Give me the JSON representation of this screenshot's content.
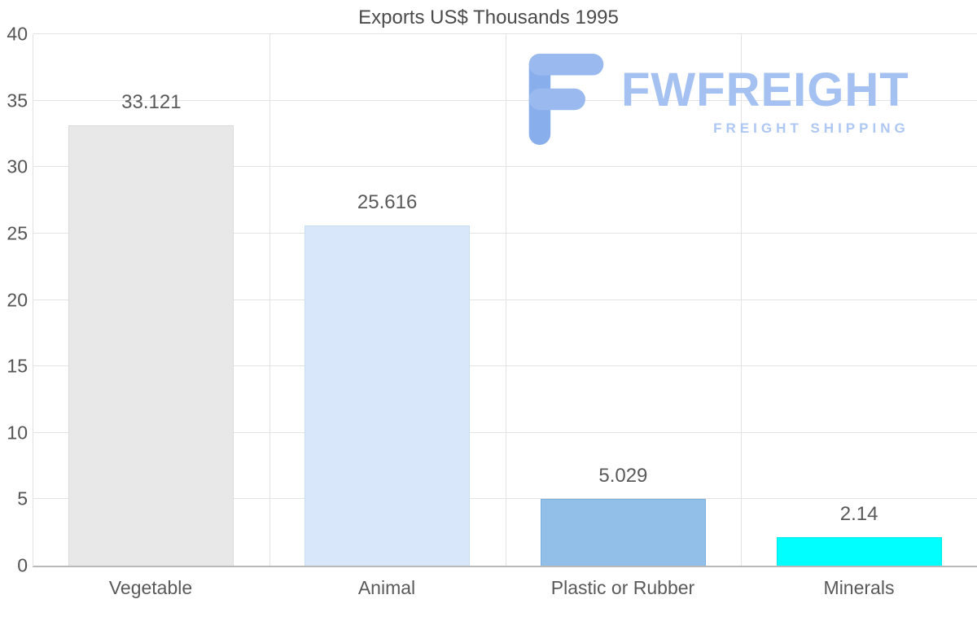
{
  "chart_data": {
    "type": "bar",
    "title": "Exports US$ Thousands 1995",
    "categories": [
      "Vegetable",
      "Animal",
      "Plastic or Rubber",
      "Minerals"
    ],
    "values": [
      33.121,
      25.616,
      5.029,
      2.14
    ],
    "value_labels": [
      "33.121",
      "25.616",
      "5.029",
      "2.14"
    ],
    "bar_colors": [
      "#e8e8e8",
      "#d8e7f9",
      "#91bfe8",
      "#00ffff"
    ],
    "bar_border_colors": [
      "#dadada",
      "#c9ddf3",
      "#7fb1e0",
      "#00e8e8"
    ],
    "xlabel": "",
    "ylabel": "",
    "ylim": [
      0,
      40
    ],
    "yticks": [
      0,
      5,
      10,
      15,
      20,
      25,
      30,
      35,
      40
    ],
    "grid": true,
    "legend": "none"
  },
  "watermark": {
    "brand": "FWFREIGHT",
    "tagline": "FREIGHT SHIPPING",
    "brand_color": "#a4c1f1",
    "tagline_color": "#aec7f3",
    "glyph_color": "#9ab9ef",
    "glyph_color_dark": "#88aeec"
  }
}
